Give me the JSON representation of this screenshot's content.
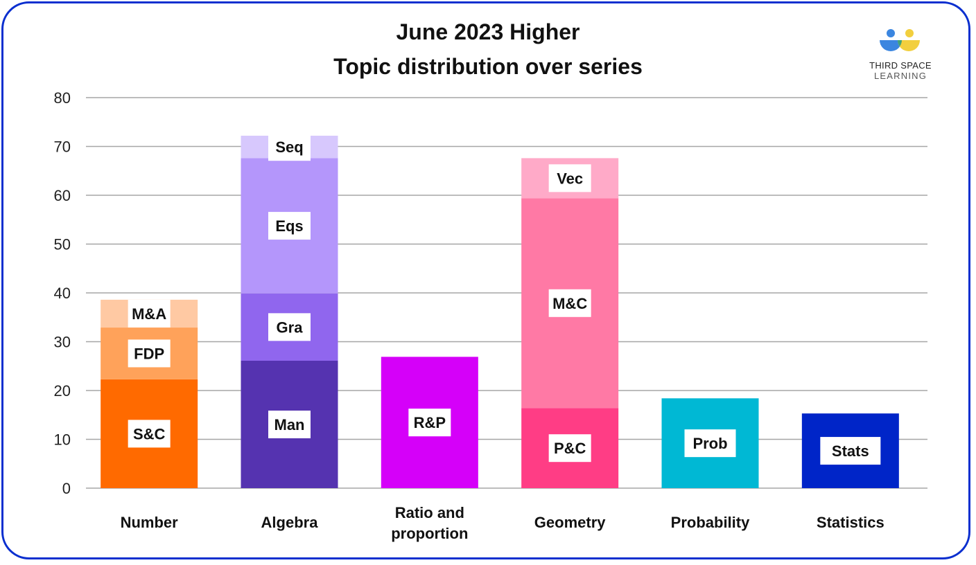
{
  "title": {
    "line1": "June 2023 Higher",
    "line2": "Topic distribution over series"
  },
  "brand": {
    "line1": "THIRD SPACE",
    "line2": "LEARNING"
  },
  "colors": {
    "border": "#0a2fcf",
    "grid": "#a6a6a6"
  },
  "chart_data": {
    "type": "bar",
    "stacked": true,
    "ylim": [
      0,
      80
    ],
    "yticks": [
      0,
      10,
      20,
      30,
      40,
      50,
      60,
      70,
      80
    ],
    "grid": true,
    "legend": "none",
    "categories": [
      {
        "lines": [
          "Number"
        ],
        "segments": [
          {
            "label": "S&C",
            "value": 22.3,
            "color": "#ff6a00"
          },
          {
            "label": "FDP",
            "value": 10.6,
            "color": "#ffa25a"
          },
          {
            "label": "M&A",
            "value": 5.7,
            "color": "#ffc9a3"
          }
        ]
      },
      {
        "lines": [
          "Algebra"
        ],
        "segments": [
          {
            "label": "Man",
            "value": 26.1,
            "color": "#5533b0"
          },
          {
            "label": "Gra",
            "value": 13.8,
            "color": "#9066ee"
          },
          {
            "label": "Eqs",
            "value": 27.7,
            "color": "#b496fb"
          },
          {
            "label": "Seq",
            "value": 4.6,
            "color": "#d7c8fd"
          }
        ]
      },
      {
        "lines": [
          "Ratio and",
          "proportion"
        ],
        "segments": [
          {
            "label": "R&P",
            "value": 26.9,
            "color": "#d500f9"
          }
        ]
      },
      {
        "lines": [
          "Geometry"
        ],
        "segments": [
          {
            "label": "P&C",
            "value": 16.4,
            "color": "#ff3d85"
          },
          {
            "label": "M&C",
            "value": 43.0,
            "color": "#ff79a5"
          },
          {
            "label": "Vec",
            "value": 8.2,
            "color": "#ffaac8"
          }
        ]
      },
      {
        "lines": [
          "Probability"
        ],
        "segments": [
          {
            "label": "Prob",
            "value": 18.4,
            "color": "#00b8d4"
          }
        ]
      },
      {
        "lines": [
          "Statistics"
        ],
        "segments": [
          {
            "label": "Stats",
            "value": 15.3,
            "color": "#0025c8"
          }
        ]
      }
    ]
  }
}
